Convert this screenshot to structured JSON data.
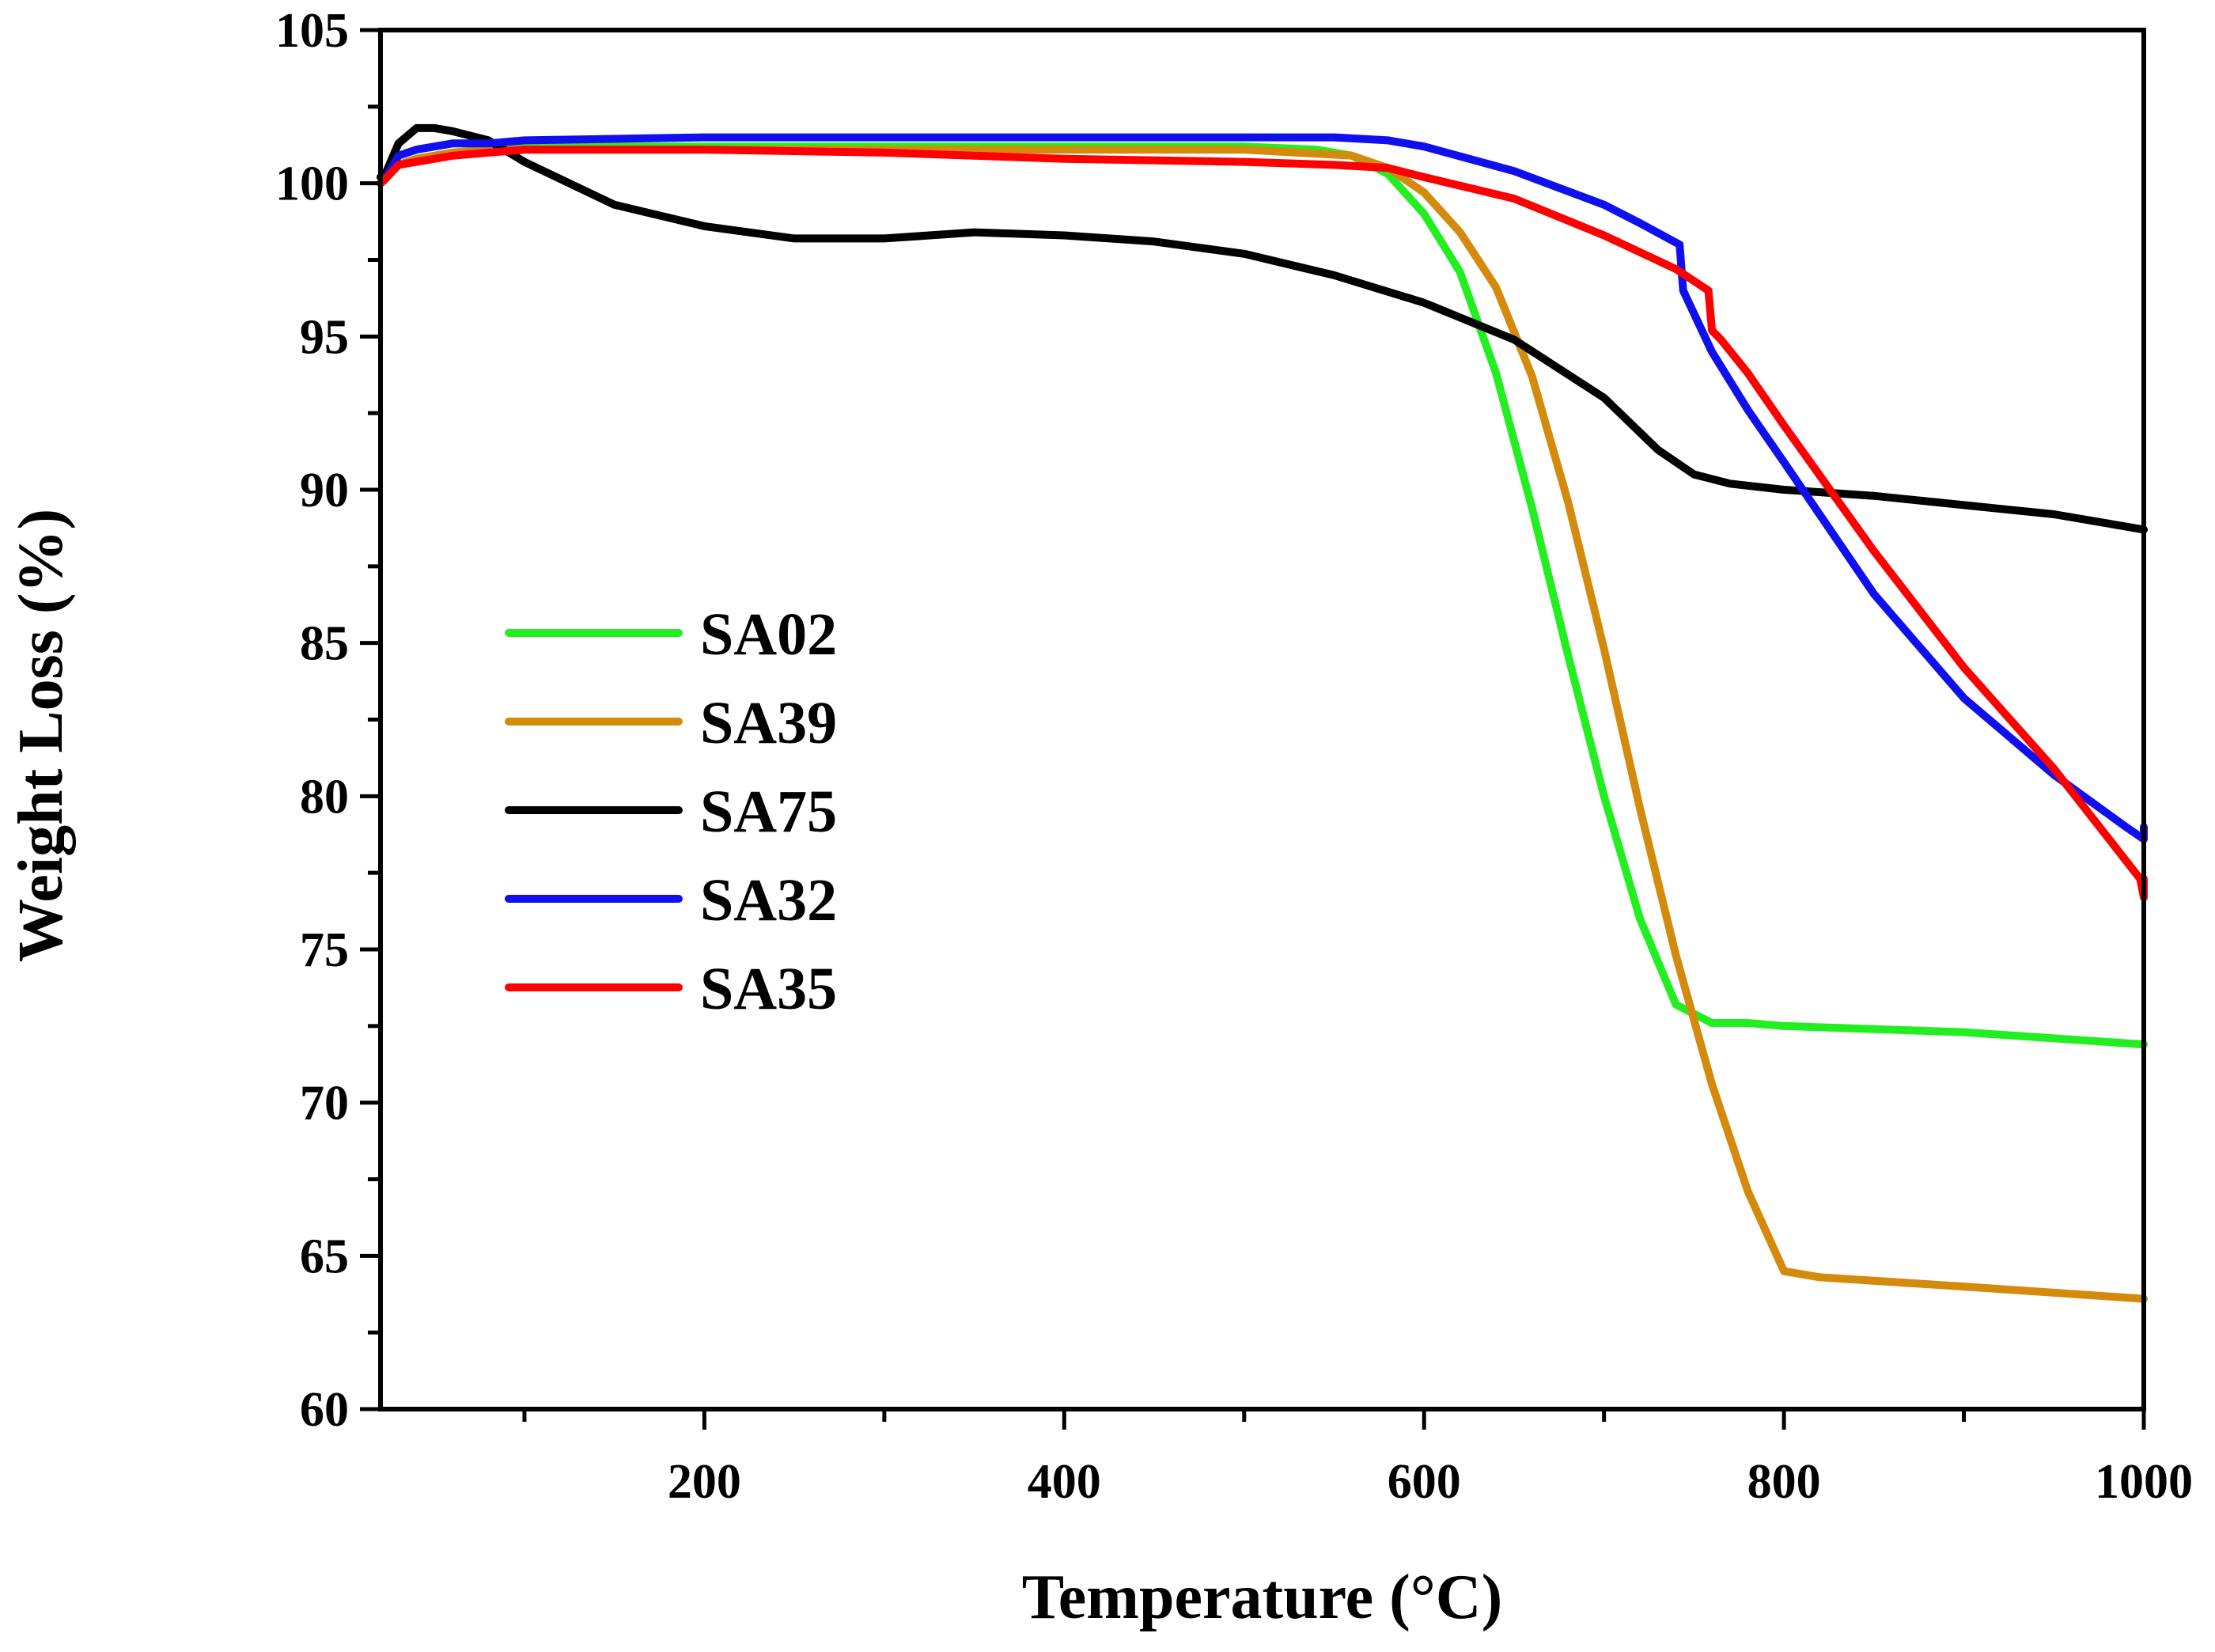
{
  "chart_data": {
    "type": "line",
    "title": "",
    "xlabel": "Temperature (°C)",
    "ylabel": "Weight Loss (%)",
    "xlim": [
      20,
      1000
    ],
    "ylim": [
      60,
      105
    ],
    "xticks": [
      200,
      400,
      600,
      800,
      1000
    ],
    "xticks_minor": [
      100,
      300,
      500,
      700,
      900
    ],
    "yticks": [
      60,
      65,
      70,
      75,
      80,
      85,
      90,
      95,
      100,
      105
    ],
    "grid": false,
    "legend_position": "center-left",
    "series": [
      {
        "name": "SA02",
        "color": "#22ee22",
        "x": [
          20,
          22,
          30,
          40,
          60,
          80,
          100,
          150,
          200,
          300,
          400,
          500,
          540,
          560,
          580,
          600,
          620,
          640,
          660,
          680,
          700,
          720,
          740,
          760,
          780,
          800,
          900,
          1000
        ],
        "y": [
          100.2,
          100.1,
          100.6,
          100.8,
          101.0,
          101.1,
          101.2,
          101.2,
          101.2,
          101.2,
          101.2,
          101.2,
          101.1,
          100.9,
          100.3,
          99.0,
          97.1,
          93.8,
          89.4,
          84.6,
          80.0,
          76.0,
          73.2,
          72.6,
          72.6,
          72.5,
          72.3,
          71.9
        ]
      },
      {
        "name": "SA39",
        "color": "#d48a0c",
        "x": [
          20,
          22,
          30,
          40,
          60,
          80,
          100,
          150,
          200,
          300,
          400,
          500,
          560,
          580,
          600,
          620,
          640,
          660,
          680,
          700,
          720,
          740,
          760,
          780,
          800,
          820,
          900,
          1000
        ],
        "y": [
          100.2,
          100.1,
          100.6,
          100.8,
          101.0,
          101.1,
          101.1,
          101.1,
          101.1,
          101.1,
          101.1,
          101.1,
          100.9,
          100.5,
          99.7,
          98.4,
          96.6,
          93.7,
          89.6,
          84.8,
          79.6,
          74.8,
          70.6,
          67.1,
          64.5,
          64.3,
          64.0,
          63.6
        ]
      },
      {
        "name": "SA75",
        "color": "#000000",
        "x": [
          20,
          22,
          30,
          40,
          50,
          60,
          80,
          100,
          150,
          200,
          250,
          300,
          350,
          400,
          450,
          500,
          550,
          600,
          650,
          700,
          730,
          750,
          770,
          800,
          850,
          900,
          950,
          1000
        ],
        "y": [
          100.2,
          100.2,
          101.3,
          101.8,
          101.8,
          101.7,
          101.4,
          100.7,
          99.3,
          98.6,
          98.2,
          98.2,
          98.4,
          98.3,
          98.1,
          97.7,
          97.0,
          96.1,
          94.9,
          93.0,
          91.3,
          90.5,
          90.2,
          90.0,
          89.8,
          89.5,
          89.2,
          88.7
        ]
      },
      {
        "name": "SA32",
        "color": "#1010ee",
        "x": [
          20,
          22,
          30,
          40,
          60,
          80,
          100,
          200,
          300,
          400,
          500,
          550,
          580,
          600,
          650,
          700,
          720,
          742,
          744,
          760,
          780,
          800,
          850,
          900,
          950,
          990,
          1000,
          1000
        ],
        "y": [
          100.0,
          100.1,
          100.9,
          101.1,
          101.3,
          101.3,
          101.4,
          101.5,
          101.5,
          101.5,
          101.5,
          101.5,
          101.4,
          101.2,
          100.4,
          99.3,
          98.7,
          98.0,
          96.5,
          94.5,
          92.6,
          90.9,
          86.6,
          83.2,
          80.7,
          79.0,
          78.6,
          79.0
        ]
      },
      {
        "name": "SA35",
        "color": "#ff0000",
        "x": [
          20,
          22,
          30,
          40,
          60,
          80,
          100,
          200,
          300,
          400,
          500,
          550,
          580,
          600,
          650,
          700,
          740,
          758,
          760,
          765,
          780,
          800,
          850,
          900,
          950,
          990,
          998,
          1000,
          1000
        ],
        "y": [
          100.0,
          100.1,
          100.6,
          100.7,
          100.9,
          101.0,
          101.1,
          101.1,
          101.0,
          100.8,
          100.7,
          100.6,
          100.5,
          100.2,
          99.5,
          98.3,
          97.2,
          96.5,
          95.2,
          94.9,
          93.8,
          92.1,
          88.0,
          84.2,
          80.9,
          77.9,
          77.3,
          76.7,
          77.3
        ]
      }
    ]
  }
}
